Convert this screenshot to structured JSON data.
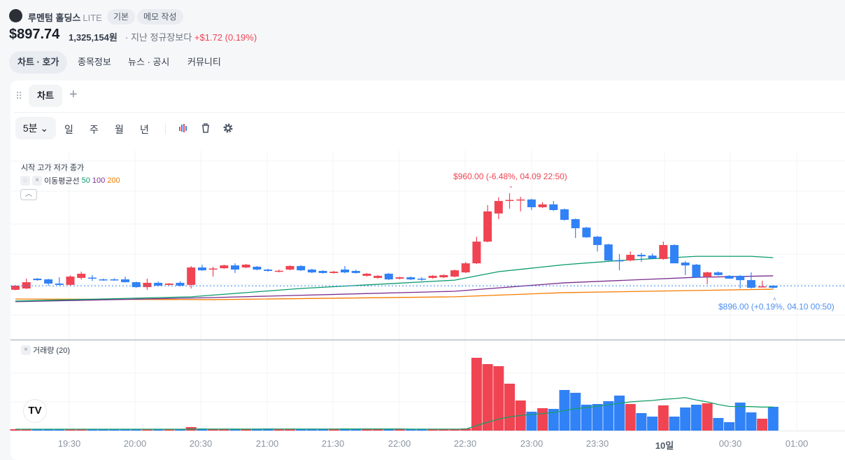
{
  "header": {
    "company": "루멘텀 홀딩스",
    "ticker": "LITE",
    "badges": [
      "기본",
      "메모 작성"
    ],
    "price": "$897.74",
    "price_krw": "1,325,154원",
    "compare_label": "· 지난 정규장보다",
    "change": "+$1.72 (0.19%)"
  },
  "nav": {
    "tabs": [
      "차트 · 호가",
      "종목정보",
      "뉴스 · 공시",
      "커뮤니티"
    ],
    "selected": 0
  },
  "chart_tabs": {
    "tab": "차트",
    "add": "+"
  },
  "toolbar": {
    "interval": "5분",
    "periods": [
      "일",
      "주",
      "월",
      "년"
    ],
    "icons": [
      "candle-style-icon",
      "trash-icon",
      "gear-icon"
    ]
  },
  "legend": {
    "ohlc": "시작 고가 저가 종가",
    "ma_label": "이동평균선",
    "ma": [
      "50",
      "100",
      "200"
    ],
    "volume": "거래량 (20)"
  },
  "annotations": {
    "high": "$960.00 (-6.48%, 04.09 22:50)",
    "low": "$896.00 (+0.19%, 04.10 00:50)"
  },
  "colors": {
    "up": "#f04452",
    "down": "#3182f6",
    "ma50": "#089a6c",
    "ma100": "#7b2f8f",
    "ma200": "#f57c00",
    "vol_ma": "#17a06a"
  },
  "chart_data": {
    "type": "candlestick",
    "interval": "5m",
    "start": "19:05",
    "end": "00:50",
    "time_labels": [
      "19:30",
      "20:00",
      "20:30",
      "21:00",
      "21:30",
      "22:00",
      "22:30",
      "23:00",
      "23:30",
      "10일",
      "00:30",
      "01:00"
    ],
    "current_price": 897.74,
    "ohlc": [
      [
        895.1,
        898.3,
        894.8,
        897.9
      ],
      [
        896.0,
        902.6,
        895.6,
        900.2
      ],
      [
        902.6,
        903.0,
        901.2,
        901.6
      ],
      [
        902.1,
        902.5,
        897.9,
        899.3
      ],
      [
        899.3,
        903.5,
        898.0,
        898.4
      ],
      [
        898.4,
        904.8,
        898.0,
        904.0
      ],
      [
        903.1,
        907.3,
        902.0,
        905.9
      ],
      [
        903.3,
        905.0,
        901.0,
        903.0
      ],
      [
        902.1,
        902.6,
        901.2,
        901.6
      ],
      [
        902.1,
        902.8,
        901.2,
        901.6
      ],
      [
        902.1,
        904.0,
        900.0,
        900.2
      ],
      [
        900.2,
        900.6,
        896.5,
        896.9
      ],
      [
        896.9,
        902.6,
        895.1,
        899.8
      ],
      [
        899.8,
        900.6,
        897.5,
        897.9
      ],
      [
        898.4,
        899.6,
        898.0,
        899.3
      ],
      [
        899.8,
        900.8,
        897.4,
        897.9
      ],
      [
        898.4,
        911.1,
        896.0,
        910.1
      ],
      [
        910.1,
        912.0,
        907.8,
        908.2
      ],
      [
        909.2,
        910.6,
        904.0,
        909.4
      ],
      [
        909.6,
        912.0,
        909.2,
        911.5
      ],
      [
        911.5,
        912.9,
        906.4,
        908.7
      ],
      [
        910.1,
        912.5,
        909.6,
        912.0
      ],
      [
        910.6,
        911.1,
        908.2,
        908.7
      ],
      [
        908.7,
        909.2,
        907.3,
        907.8
      ],
      [
        907.7,
        908.7,
        906.8,
        907.9
      ],
      [
        908.7,
        911.6,
        908.2,
        911.1
      ],
      [
        911.1,
        911.6,
        907.8,
        908.2
      ],
      [
        908.7,
        909.2,
        906.3,
        906.8
      ],
      [
        907.8,
        908.3,
        906.0,
        906.4
      ],
      [
        906.4,
        907.8,
        906.0,
        907.3
      ],
      [
        908.7,
        911.1,
        906.3,
        906.8
      ],
      [
        907.8,
        908.5,
        906.0,
        906.4
      ],
      [
        904.5,
        906.4,
        904.0,
        905.9
      ],
      [
        903.1,
        905.0,
        902.6,
        904.5
      ],
      [
        905.9,
        906.4,
        901.6,
        902.1
      ],
      [
        902.6,
        903.9,
        902.1,
        903.5
      ],
      [
        903.5,
        904.0,
        901.6,
        902.1
      ],
      [
        902.6,
        903.5,
        901.2,
        902.1
      ],
      [
        903.1,
        905.0,
        902.6,
        904.5
      ],
      [
        903.5,
        905.4,
        903.0,
        905.0
      ],
      [
        904.0,
        908.7,
        903.5,
        908.2
      ],
      [
        906.8,
        913.8,
        906.3,
        912.9
      ],
      [
        912.9,
        930.8,
        912.4,
        927.5
      ],
      [
        927.5,
        952.0,
        927.0,
        947.8
      ],
      [
        946.4,
        957.2,
        942.6,
        954.8
      ],
      [
        955.1,
        960.0,
        949.6,
        955.5
      ],
      [
        955.3,
        957.6,
        947.8,
        955.8
      ],
      [
        955.8,
        956.3,
        948.7,
        950.6
      ],
      [
        950.6,
        954.0,
        950.0,
        952.5
      ],
      [
        952.5,
        954.8,
        948.2,
        948.7
      ],
      [
        949.2,
        949.7,
        941.6,
        942.1
      ],
      [
        942.6,
        943.0,
        929.9,
        936.5
      ],
      [
        936.9,
        937.4,
        930.0,
        930.4
      ],
      [
        930.8,
        931.3,
        920.9,
        925.2
      ],
      [
        925.6,
        926.0,
        914.8,
        914.8
      ],
      [
        914.9,
        919.1,
        908.2,
        914.6
      ],
      [
        914.8,
        920.9,
        914.3,
        918.6
      ],
      [
        918.6,
        920.0,
        913.9,
        917.6
      ],
      [
        918.1,
        919.5,
        915.8,
        916.2
      ],
      [
        915.8,
        927.5,
        915.3,
        925.2
      ],
      [
        925.2,
        925.6,
        912.9,
        912.9
      ],
      [
        913.4,
        914.4,
        905.0,
        911.5
      ],
      [
        912.0,
        912.5,
        903.3,
        903.5
      ],
      [
        904.0,
        907.3,
        898.8,
        906.8
      ],
      [
        906.8,
        907.5,
        904.6,
        905.0
      ],
      [
        904.5,
        905.0,
        902.6,
        902.6
      ],
      [
        904.5,
        905.0,
        896.0,
        901.6
      ],
      [
        901.6,
        906.8,
        896.0,
        896.5
      ],
      [
        897.2,
        901.2,
        896.8,
        897.4
      ],
      [
        897.9,
        898.2,
        896.0,
        896.5
      ]
    ],
    "volume": [
      2,
      2,
      2,
      2,
      2,
      2,
      2,
      2,
      2,
      2,
      2,
      2,
      2,
      2,
      2,
      2,
      5,
      3,
      2,
      2,
      2,
      2,
      2,
      3,
      2,
      2,
      2,
      2,
      2,
      2,
      3,
      2,
      2,
      2,
      2,
      2,
      2,
      2,
      2,
      2,
      2,
      3,
      104,
      95,
      92,
      67,
      43,
      27,
      32,
      31,
      58,
      54,
      37,
      38,
      42,
      50,
      38,
      25,
      20,
      36,
      20,
      33,
      37,
      39,
      18,
      12,
      40,
      26,
      17,
      34
    ],
    "ma": {
      "ma50": [
        [
          0,
          887.5
        ],
        [
          16,
          890.4
        ],
        [
          26,
          896.0
        ],
        [
          40,
          901.6
        ],
        [
          44,
          907.3
        ],
        [
          50,
          912.0
        ],
        [
          55,
          914.8
        ],
        [
          62,
          917.6
        ],
        [
          67,
          917.6
        ],
        [
          69,
          916.7
        ]
      ],
      "ma100": [
        [
          0,
          887.1
        ],
        [
          18,
          889.9
        ],
        [
          40,
          894.1
        ],
        [
          50,
          899.8
        ],
        [
          62,
          903.5
        ],
        [
          69,
          904.5
        ]
      ],
      "ma200": [
        [
          0,
          888.9
        ],
        [
          18,
          888.5
        ],
        [
          40,
          890.4
        ],
        [
          50,
          893.2
        ],
        [
          69,
          895.5
        ]
      ]
    }
  }
}
